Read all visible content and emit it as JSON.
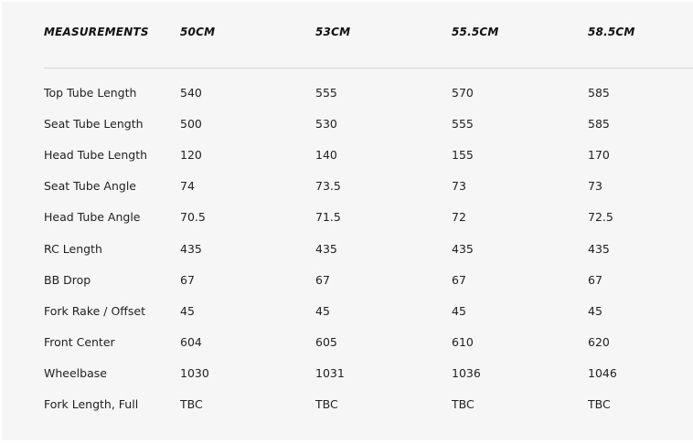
{
  "table": {
    "headers": [
      "MEASUREMENTS",
      "50CM",
      "53CM",
      "55.5CM",
      "58.5CM"
    ],
    "rows": [
      [
        "Top Tube Length",
        "540",
        "555",
        "570",
        "585"
      ],
      [
        "Seat Tube Length",
        "500",
        "530",
        "555",
        "585"
      ],
      [
        "Head Tube Length",
        "120",
        "140",
        "155",
        "170"
      ],
      [
        "Seat Tube Angle",
        "74",
        "73.5",
        "73",
        "73"
      ],
      [
        "Head Tube Angle",
        "70.5",
        "71.5",
        "72",
        "72.5"
      ],
      [
        "RC Length",
        "435",
        "435",
        "435",
        "435"
      ],
      [
        "BB Drop",
        "67",
        "67",
        "67",
        "67"
      ],
      [
        "Fork Rake / Offset",
        "45",
        "45",
        "45",
        "45"
      ],
      [
        "Front Center",
        "604",
        "605",
        "610",
        "620"
      ],
      [
        "Wheelbase",
        "1030",
        "1031",
        "1036",
        "1046"
      ],
      [
        "Fork Length, Full",
        "TBC",
        "TBC",
        "TBC",
        "TBC"
      ]
    ]
  }
}
